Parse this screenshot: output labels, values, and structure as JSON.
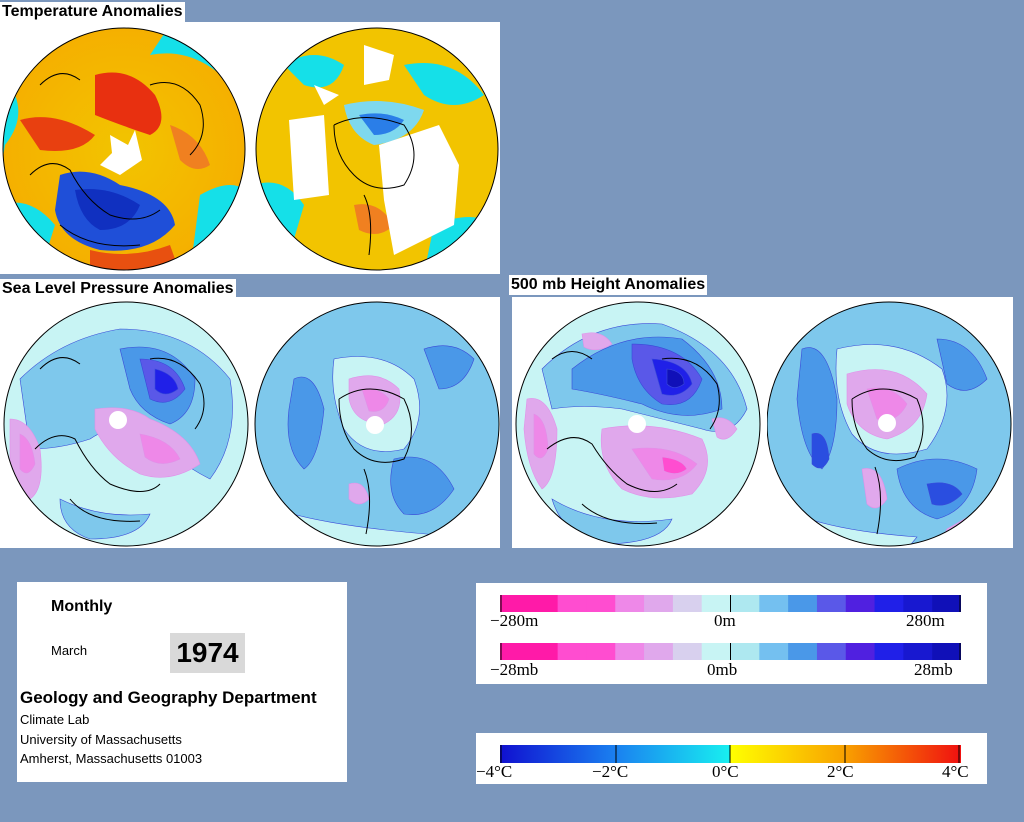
{
  "panels": {
    "temperature": {
      "title": "Temperature Anomalies"
    },
    "slp": {
      "title": "Sea Level Pressure Anomalies"
    },
    "height": {
      "title": "500 mb Height Anomalies"
    }
  },
  "info": {
    "period": "Monthly",
    "month": "March",
    "year": "1974",
    "department": "Geology and Geography Department",
    "lab": "Climate Lab",
    "university": "University of Massachusetts",
    "address": "Amherst, Massachusetts 01003"
  },
  "legend_height": {
    "min_label": "−280m",
    "mid_label": "0m",
    "max_label": "280m",
    "colors": [
      "#ff1aa8",
      "#ff1aa8",
      "#ff4dd0",
      "#ff4dd0",
      "#ee88e8",
      "#e0a8ec",
      "#d8d0ee",
      "#c8f4f4",
      "#aee8f0",
      "#74c0f0",
      "#4a98e8",
      "#5a58e8",
      "#5020e0",
      "#2020e8",
      "#1818d0",
      "#1010b8"
    ]
  },
  "legend_pressure": {
    "min_label": "−28mb",
    "mid_label": "0mb",
    "max_label": "28mb",
    "colors": [
      "#ff1aa8",
      "#ff1aa8",
      "#ff4dd0",
      "#ff4dd0",
      "#ee88e8",
      "#e0a8ec",
      "#d8d0ee",
      "#c8f4f4",
      "#aee8f0",
      "#74c0f0",
      "#4a98e8",
      "#5a58e8",
      "#5020e0",
      "#2020e8",
      "#1818d0",
      "#1010b8"
    ]
  },
  "legend_temperature": {
    "labels": [
      "−4°C",
      "−2°C",
      "0°C",
      "2°C",
      "4°C"
    ]
  },
  "colors": {
    "background": "#7b97bd",
    "cold": "#1f4fd8",
    "neutral": "#15e0e8",
    "warm": "#f2c400",
    "hot": "#e83010",
    "contour_cool": "#7ec8ec",
    "contour_deep": "#3a4ad8",
    "contour_pink": "#e090e8"
  }
}
